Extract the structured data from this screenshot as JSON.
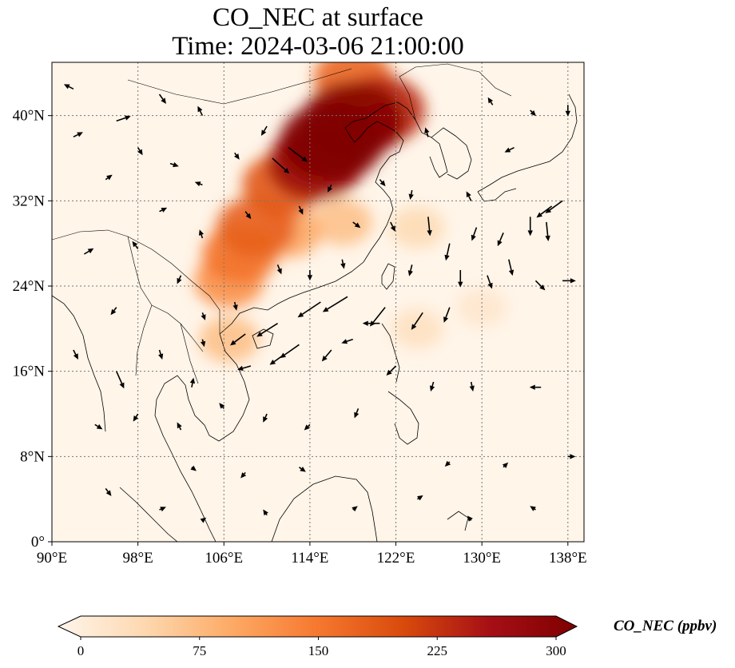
{
  "title": {
    "line1": "CO_NEC at surface",
    "line2": "Time: 2024-03-06 21:00:00"
  },
  "map": {
    "extent": {
      "lon": [
        90,
        139.5
      ],
      "lat": [
        0,
        45
      ]
    },
    "lon_ticks": [
      {
        "value": 90,
        "label": "90°E"
      },
      {
        "value": 98,
        "label": "98°E"
      },
      {
        "value": 106,
        "label": "106°E"
      },
      {
        "value": 114,
        "label": "114°E"
      },
      {
        "value": 122,
        "label": "122°E"
      },
      {
        "value": 130,
        "label": "130°E"
      },
      {
        "value": 138,
        "label": "138°E"
      }
    ],
    "lat_ticks": [
      {
        "value": 0,
        "label": "0°"
      },
      {
        "value": 8,
        "label": "8°N"
      },
      {
        "value": 16,
        "label": "16°N"
      },
      {
        "value": 24,
        "label": "24°N"
      },
      {
        "value": 32,
        "label": "32°N"
      },
      {
        "value": 40,
        "label": "40°N"
      }
    ],
    "colors": {
      "background": "#fff5e9",
      "gridline": "#777777",
      "coast": "#000000",
      "arrow": "#000000"
    }
  },
  "colorbar": {
    "label": "CO_NEC (ppbv)",
    "ticks": [
      {
        "value": 0,
        "label": "0"
      },
      {
        "value": 75,
        "label": "75"
      },
      {
        "value": 150,
        "label": "150"
      },
      {
        "value": 225,
        "label": "225"
      },
      {
        "value": 300,
        "label": "300"
      }
    ],
    "range": [
      0,
      300
    ],
    "stops": [
      "#fff5eb",
      "#fdd8b0",
      "#fdaa66",
      "#f6782f",
      "#d84a0c",
      "#a50f15",
      "#7f0000"
    ]
  },
  "field": [
    {
      "lon": 116,
      "lat": 37.5,
      "value": 300
    },
    {
      "lon": 118,
      "lat": 39.5,
      "value": 290
    },
    {
      "lon": 114.5,
      "lat": 35.5,
      "value": 260
    },
    {
      "lon": 120.5,
      "lat": 40.5,
      "value": 230
    },
    {
      "lon": 118,
      "lat": 43.5,
      "value": 170
    },
    {
      "lon": 111.5,
      "lat": 33.5,
      "value": 185
    },
    {
      "lon": 109,
      "lat": 29.5,
      "value": 175
    },
    {
      "lon": 107.5,
      "lat": 27,
      "value": 155
    },
    {
      "lon": 106.5,
      "lat": 24.5,
      "value": 125
    },
    {
      "lon": 112,
      "lat": 29,
      "value": 100
    },
    {
      "lon": 117,
      "lat": 30,
      "value": 75
    },
    {
      "lon": 106.5,
      "lat": 19,
      "value": 75
    },
    {
      "lon": 124,
      "lat": 29.5,
      "value": 45
    },
    {
      "lon": 124,
      "lat": 20,
      "value": 35
    },
    {
      "lon": 130,
      "lat": 22,
      "value": 25
    }
  ],
  "winds": [
    {
      "lon": 92,
      "lat": 42.5,
      "u": -1,
      "v": 0.5
    },
    {
      "lon": 96,
      "lat": 39.5,
      "u": 1.5,
      "v": 0.5
    },
    {
      "lon": 100,
      "lat": 42,
      "u": 0.7,
      "v": -1
    },
    {
      "lon": 104,
      "lat": 40,
      "u": -0.5,
      "v": 1
    },
    {
      "lon": 110,
      "lat": 39,
      "u": -0.6,
      "v": -1
    },
    {
      "lon": 112,
      "lat": 37,
      "u": 2,
      "v": -1.5
    },
    {
      "lon": 110.5,
      "lat": 36,
      "u": 1.8,
      "v": -1.6
    },
    {
      "lon": 125,
      "lat": 38,
      "u": -0.3,
      "v": 1
    },
    {
      "lon": 133,
      "lat": 37,
      "u": -1,
      "v": -0.5
    },
    {
      "lon": 129,
      "lat": 32,
      "u": -0.5,
      "v": 1
    },
    {
      "lon": 136.5,
      "lat": 31.5,
      "u": -1.6,
      "v": -1.2
    },
    {
      "lon": 137.5,
      "lat": 32,
      "u": -1.8,
      "v": -1.3
    },
    {
      "lon": 134.5,
      "lat": 30.5,
      "u": 0,
      "v": -2
    },
    {
      "lon": 136,
      "lat": 30,
      "u": 0.2,
      "v": -2
    },
    {
      "lon": 132,
      "lat": 29,
      "u": -0.6,
      "v": -1.4
    },
    {
      "lon": 129.5,
      "lat": 29.5,
      "u": -0.5,
      "v": -1.4
    },
    {
      "lon": 125,
      "lat": 30.5,
      "u": 0.2,
      "v": -2
    },
    {
      "lon": 121.5,
      "lat": 30,
      "u": 0.5,
      "v": -1
    },
    {
      "lon": 118,
      "lat": 30,
      "u": 0.8,
      "v": -0.6
    },
    {
      "lon": 127,
      "lat": 28,
      "u": -0.4,
      "v": -1.8
    },
    {
      "lon": 132.5,
      "lat": 26.5,
      "u": 0.4,
      "v": -1.7
    },
    {
      "lon": 135,
      "lat": 24.5,
      "u": 1,
      "v": -1
    },
    {
      "lon": 137.5,
      "lat": 24.5,
      "u": 1.4,
      "v": 0
    },
    {
      "lon": 123.5,
      "lat": 26,
      "u": -0.3,
      "v": -1.2
    },
    {
      "lon": 128,
      "lat": 25.5,
      "u": 0,
      "v": -1.8
    },
    {
      "lon": 130.5,
      "lat": 25,
      "u": 0.5,
      "v": -1.4
    },
    {
      "lon": 121,
      "lat": 22,
      "u": -1.6,
      "v": -2
    },
    {
      "lon": 117.5,
      "lat": 23,
      "u": -2.6,
      "v": -1.6
    },
    {
      "lon": 115,
      "lat": 22.5,
      "u": -2.4,
      "v": -1.6
    },
    {
      "lon": 111,
      "lat": 20.5,
      "u": -2.2,
      "v": -1.4
    },
    {
      "lon": 108,
      "lat": 19.5,
      "u": -1.6,
      "v": -1.2
    },
    {
      "lon": 113,
      "lat": 18.5,
      "u": -2,
      "v": -1.4
    },
    {
      "lon": 124.5,
      "lat": 21.5,
      "u": -1.2,
      "v": -1.8
    },
    {
      "lon": 127,
      "lat": 22,
      "u": -0.6,
      "v": -1.6
    },
    {
      "lon": 120.5,
      "lat": 20.5,
      "u": -1.8,
      "v": 0
    },
    {
      "lon": 118,
      "lat": 19,
      "u": -1.2,
      "v": -0.4
    },
    {
      "lon": 116,
      "lat": 18,
      "u": -1,
      "v": -1.2
    },
    {
      "lon": 111.5,
      "lat": 17.5,
      "u": -1.4,
      "v": -1
    },
    {
      "lon": 108.5,
      "lat": 16.5,
      "u": -1.4,
      "v": -0.4
    },
    {
      "lon": 122,
      "lat": 16.5,
      "u": -1,
      "v": -1
    },
    {
      "lon": 125.5,
      "lat": 15,
      "u": -0.3,
      "v": -1
    },
    {
      "lon": 129,
      "lat": 15,
      "u": 0.2,
      "v": -1
    },
    {
      "lon": 135.5,
      "lat": 14.5,
      "u": -1.2,
      "v": 0
    },
    {
      "lon": 118.5,
      "lat": 12.5,
      "u": -0.4,
      "v": -1
    },
    {
      "lon": 96,
      "lat": 16,
      "u": 0.8,
      "v": -1.8
    },
    {
      "lon": 92,
      "lat": 18,
      "u": 0.5,
      "v": -1
    },
    {
      "lon": 100,
      "lat": 18,
      "u": 0.3,
      "v": -1
    },
    {
      "lon": 104,
      "lat": 19,
      "u": 0.2,
      "v": -0.8
    },
    {
      "lon": 94,
      "lat": 11,
      "u": 0.8,
      "v": -0.5
    },
    {
      "lon": 98,
      "lat": 12,
      "u": -0.5,
      "v": -0.8
    },
    {
      "lon": 102,
      "lat": 10.5,
      "u": -0.4,
      "v": 0.8
    },
    {
      "lon": 106,
      "lat": 12.5,
      "u": -0.5,
      "v": 0.6
    },
    {
      "lon": 110,
      "lat": 12,
      "u": -0.4,
      "v": -0.9
    },
    {
      "lon": 114,
      "lat": 11,
      "u": -0.6,
      "v": -0.6
    },
    {
      "lon": 103,
      "lat": 7,
      "u": 0.5,
      "v": -0.4
    },
    {
      "lon": 108,
      "lat": 6.5,
      "u": -0.5,
      "v": -0.6
    },
    {
      "lon": 113,
      "lat": 7,
      "u": 0.7,
      "v": -0.5
    },
    {
      "lon": 127,
      "lat": 7.5,
      "u": -0.5,
      "v": -0.5
    },
    {
      "lon": 132,
      "lat": 7,
      "u": 0.5,
      "v": 0.5
    },
    {
      "lon": 138,
      "lat": 8,
      "u": 0.8,
      "v": 0
    },
    {
      "lon": 95,
      "lat": 5,
      "u": 0.6,
      "v": -0.8
    },
    {
      "lon": 100,
      "lat": 3,
      "u": 0.7,
      "v": 0.3
    },
    {
      "lon": 104,
      "lat": 2,
      "u": 0.4,
      "v": 0.3
    },
    {
      "lon": 110,
      "lat": 2.5,
      "u": -0.4,
      "v": 0.6
    },
    {
      "lon": 118,
      "lat": 3,
      "u": 0.5,
      "v": 0.4
    },
    {
      "lon": 124,
      "lat": 4,
      "u": 0.6,
      "v": 0.4
    },
    {
      "lon": 129,
      "lat": 2,
      "u": -0.4,
      "v": 0.5
    },
    {
      "lon": 135,
      "lat": 3,
      "u": -0.6,
      "v": 0.4
    },
    {
      "lon": 93,
      "lat": 27,
      "u": 1,
      "v": 0.6
    },
    {
      "lon": 98,
      "lat": 27.5,
      "u": -0.6,
      "v": 0.8
    },
    {
      "lon": 102,
      "lat": 25,
      "u": -0.4,
      "v": -0.9
    },
    {
      "lon": 96,
      "lat": 22,
      "u": -0.6,
      "v": -0.8
    },
    {
      "lon": 100,
      "lat": 31,
      "u": 0.8,
      "v": 0.4
    },
    {
      "lon": 95,
      "lat": 34,
      "u": 0.7,
      "v": 0.5
    },
    {
      "lon": 104,
      "lat": 33.5,
      "u": -0.8,
      "v": 0.3
    },
    {
      "lon": 108,
      "lat": 31,
      "u": 0.6,
      "v": -0.8
    },
    {
      "lon": 113,
      "lat": 31.5,
      "u": 0.4,
      "v": -0.9
    },
    {
      "lon": 116,
      "lat": 33.5,
      "u": -0.4,
      "v": -0.8
    },
    {
      "lon": 120.5,
      "lat": 34,
      "u": 0.6,
      "v": -0.7
    },
    {
      "lon": 123.5,
      "lat": 33,
      "u": -0.2,
      "v": -1
    },
    {
      "lon": 111,
      "lat": 26,
      "u": 0.4,
      "v": -1
    },
    {
      "lon": 114,
      "lat": 25.5,
      "u": 0,
      "v": -1.1
    },
    {
      "lon": 117,
      "lat": 26.5,
      "u": 0.2,
      "v": -1
    },
    {
      "lon": 107,
      "lat": 22.5,
      "u": 0.2,
      "v": -0.9
    },
    {
      "lon": 104,
      "lat": 21.5,
      "u": 0.3,
      "v": -0.8
    },
    {
      "lon": 103,
      "lat": 14.5,
      "u": 0.2,
      "v": 1
    },
    {
      "lon": 92,
      "lat": 38,
      "u": 1,
      "v": 0.5
    },
    {
      "lon": 107,
      "lat": 36.5,
      "u": 0.5,
      "v": -0.7
    },
    {
      "lon": 104,
      "lat": 28.5,
      "u": -0.3,
      "v": 0.9
    },
    {
      "lon": 101,
      "lat": 35.5,
      "u": 0.9,
      "v": -0.3
    },
    {
      "lon": 98,
      "lat": 37,
      "u": 0.5,
      "v": -0.8
    },
    {
      "lon": 138,
      "lat": 41,
      "u": 0,
      "v": -1.2
    },
    {
      "lon": 134.5,
      "lat": 40.5,
      "u": 0.6,
      "v": -0.6
    },
    {
      "lon": 131,
      "lat": 41,
      "u": -0.5,
      "v": 0.8
    }
  ]
}
